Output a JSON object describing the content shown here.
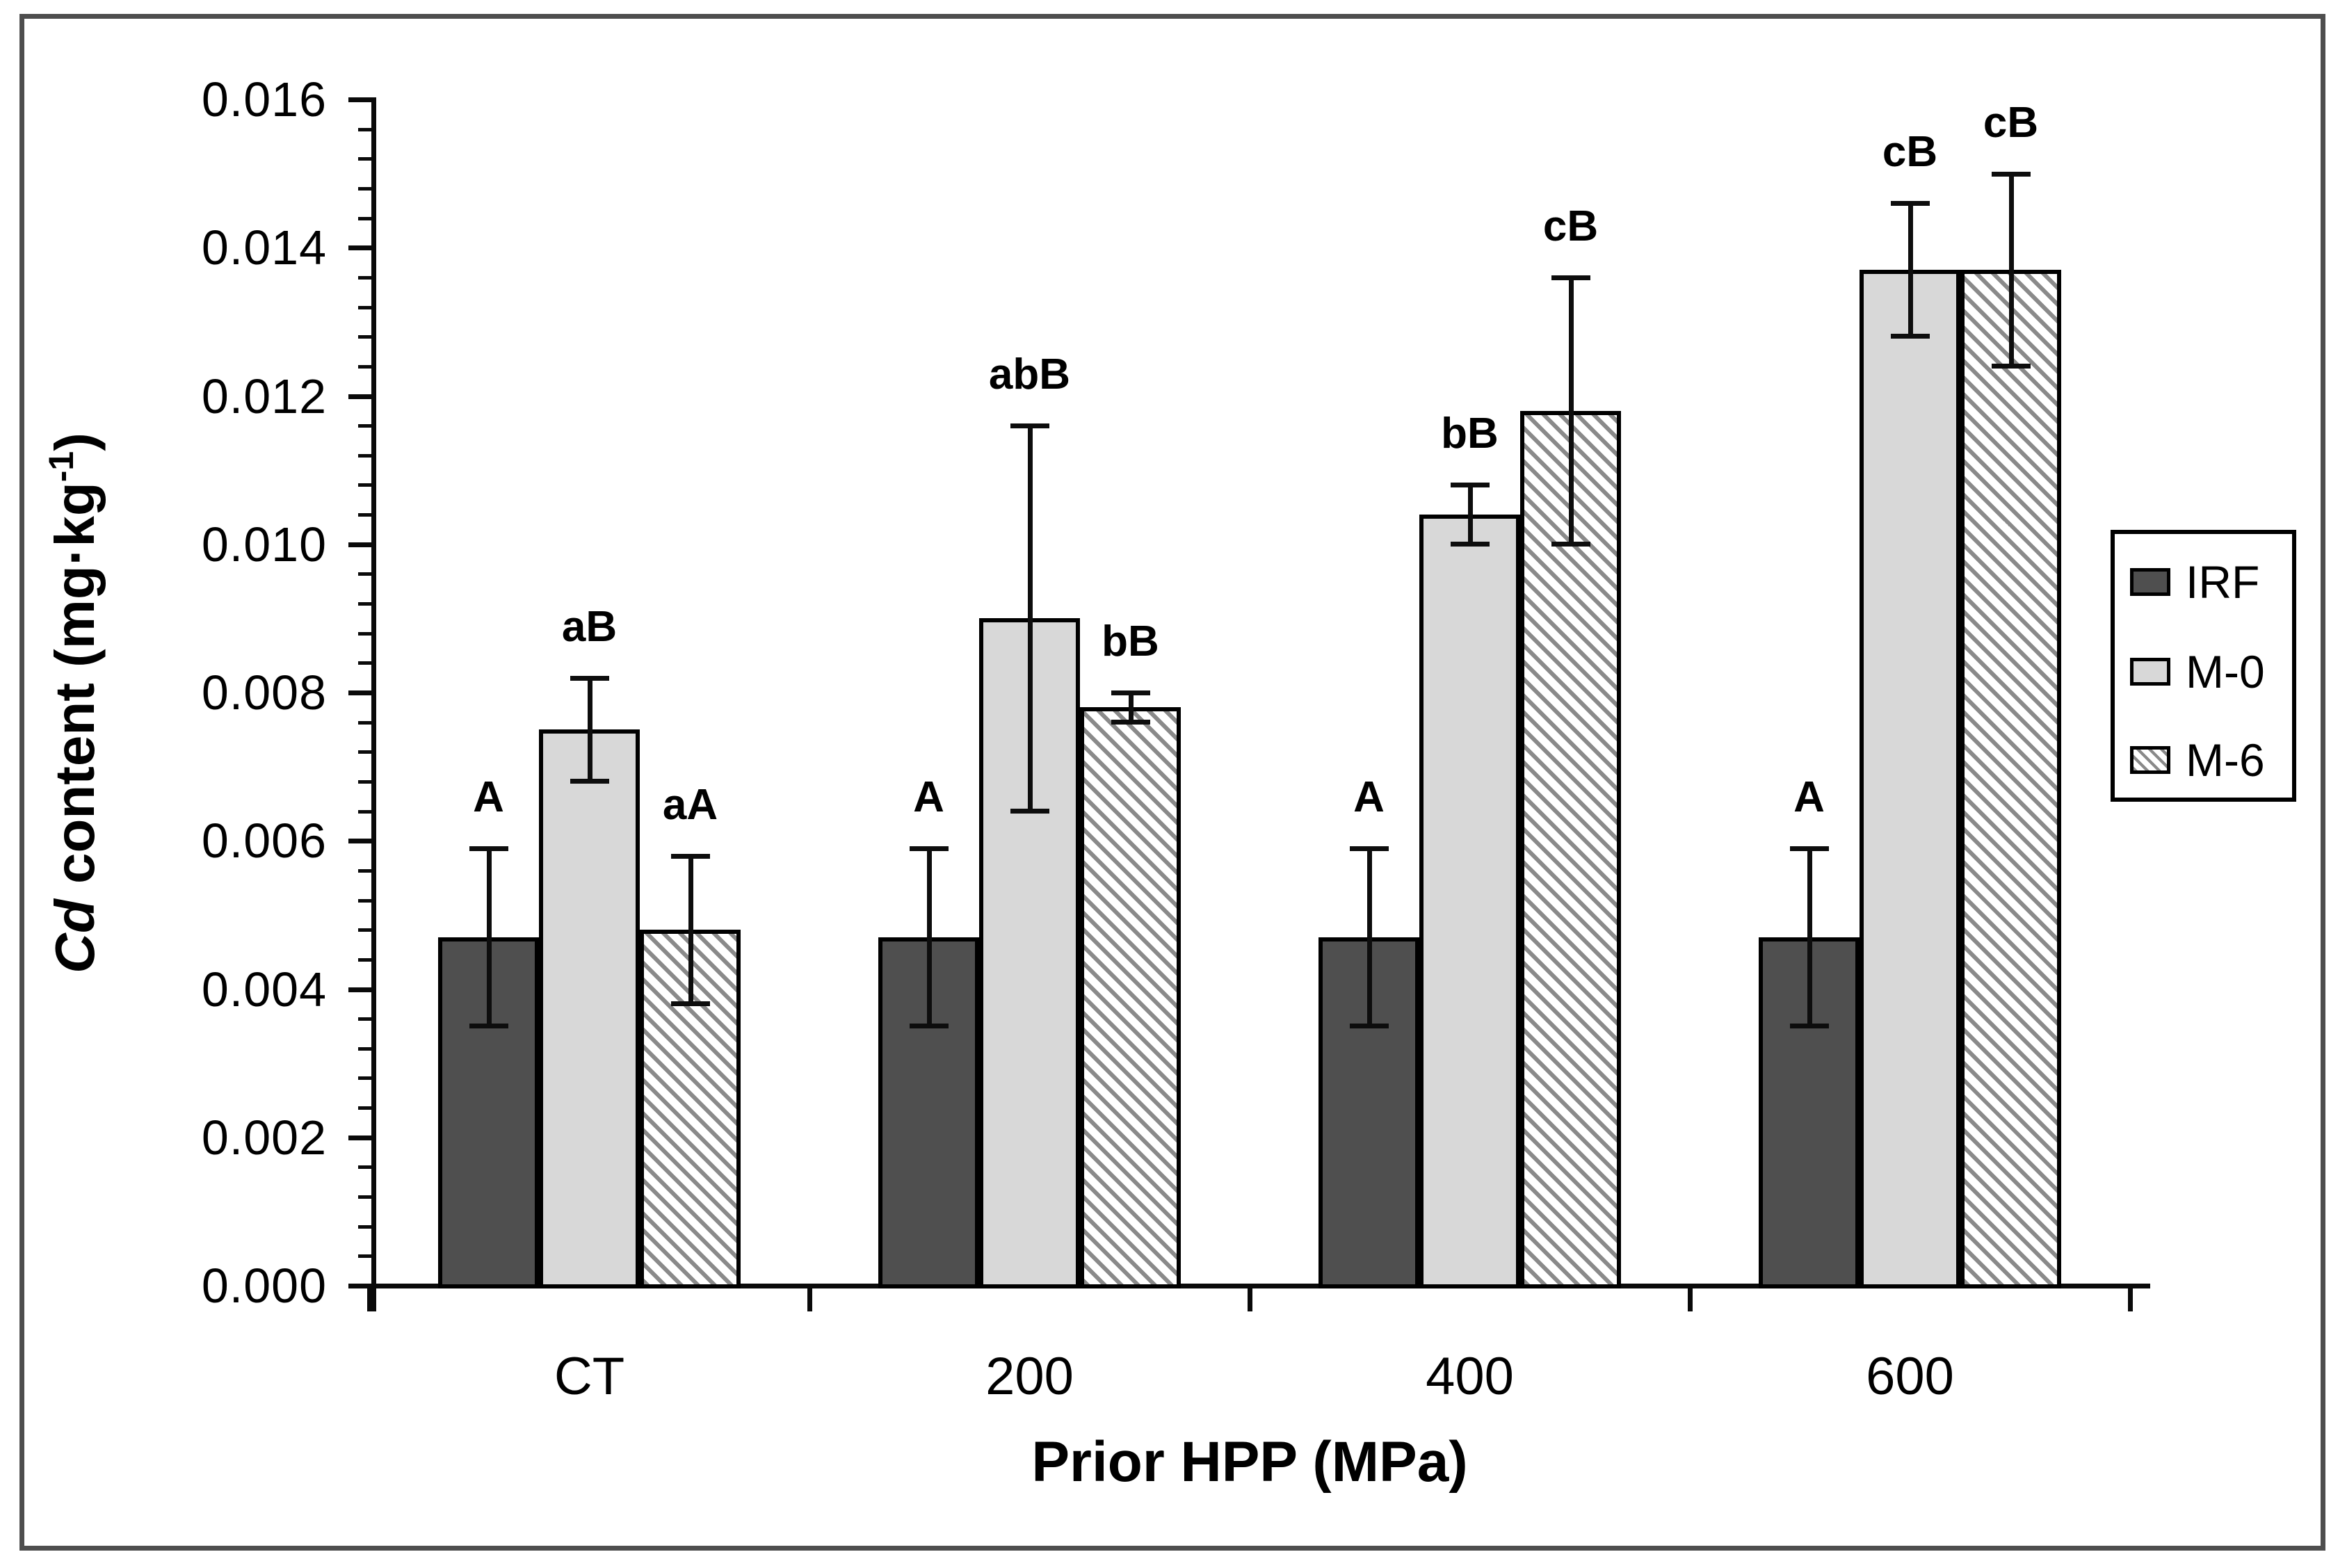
{
  "chart_data": {
    "type": "bar",
    "title": "",
    "xlabel": "Prior HPP (MPa)",
    "ylabel": "Cd content (mg·kg-1)",
    "categories": [
      "CT",
      "200",
      "400",
      "600"
    ],
    "series": [
      {
        "name": "IRF",
        "pattern": "solid-dark",
        "color": "#4f4f4f",
        "values": [
          0.0047,
          0.0047,
          0.0047,
          0.0047
        ],
        "errors": [
          0.0012,
          0.0012,
          0.0012,
          0.0012
        ],
        "sig_labels": [
          "A",
          "A",
          "A",
          "A"
        ]
      },
      {
        "name": "M-0",
        "pattern": "solid-light",
        "color": "#d8d8d8",
        "values": [
          0.0075,
          0.009,
          0.0104,
          0.0137
        ],
        "errors": [
          0.0007,
          0.0026,
          0.0004,
          0.0009
        ],
        "sig_labels": [
          "aB",
          "abB",
          "bB",
          "cB"
        ]
      },
      {
        "name": "M-6",
        "pattern": "diagonal-hatch",
        "color": "#ffffff",
        "hatch_color": "#8a8a8a",
        "values": [
          0.0048,
          0.0078,
          0.0118,
          0.0137
        ],
        "errors": [
          0.001,
          0.0002,
          0.0018,
          0.0013
        ],
        "sig_labels": [
          "aA",
          "bB",
          "cB",
          "cB"
        ]
      }
    ],
    "ylim": [
      0,
      0.016
    ],
    "ytick_step": 0.002,
    "ytick_labels": [
      "0.000",
      "0.002",
      "0.004",
      "0.006",
      "0.008",
      "0.010",
      "0.012",
      "0.014",
      "0.016"
    ],
    "minor_ticks_per_major": 5,
    "grid": false,
    "legend_position": "right",
    "error_bars": true
  },
  "axes": {
    "y": {
      "title_italic": "Cd",
      "title_rest": " content (mg·kg",
      "title_sup": "-1",
      "title_end": ")"
    },
    "x": {
      "title": "Prior HPP (MPa)"
    }
  },
  "legend": {
    "items": [
      {
        "label": "IRF",
        "pattern": "solid-dark"
      },
      {
        "label": "M-0",
        "pattern": "solid-light"
      },
      {
        "label": "M-6",
        "pattern": "diagonal-hatch"
      }
    ]
  }
}
